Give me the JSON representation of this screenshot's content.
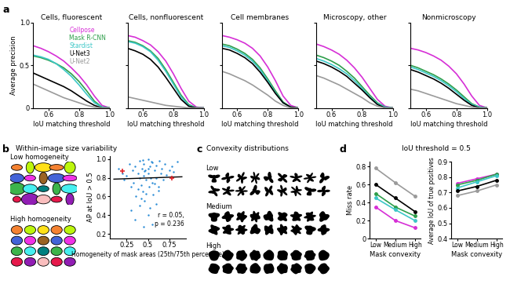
{
  "panel_labels": [
    "a",
    "b",
    "c",
    "d"
  ],
  "panel_b": {
    "title": "Within-image size variability",
    "image_labels": [
      "Low homogeneity",
      "High homogeneity"
    ]
  },
  "panel_c": {
    "title": "Convexity distributions",
    "row_labels": [
      "Low",
      "Medium",
      "High"
    ]
  },
  "panel_d_title": "IoU threshold = 0.5",
  "chart_data": [
    {
      "type": "line",
      "title": "Cells, fluorescent",
      "xlabel": "IoU matching threshold",
      "ylabel": "Average precision",
      "x": [
        0.5,
        0.55,
        0.6,
        0.65,
        0.7,
        0.75,
        0.8,
        0.85,
        0.9,
        0.95,
        1.0
      ],
      "xlim": [
        0.5,
        1.0
      ],
      "xticks": [
        0.6,
        0.8,
        1.0
      ],
      "ylim": [
        0,
        1.0
      ],
      "yticks": [
        0,
        0.5,
        1.0
      ],
      "legend": "upper right",
      "series": [
        {
          "name": "Cellpose",
          "color": "#d62fd6",
          "values": [
            0.73,
            0.7,
            0.66,
            0.61,
            0.55,
            0.47,
            0.38,
            0.27,
            0.14,
            0.03,
            0
          ]
        },
        {
          "name": "Mask R-CNN",
          "color": "#2e9e4a",
          "values": [
            0.61,
            0.59,
            0.56,
            0.52,
            0.47,
            0.4,
            0.31,
            0.2,
            0.08,
            0.01,
            0
          ]
        },
        {
          "name": "Stardist",
          "color": "#3cc7c7",
          "values": [
            0.62,
            0.6,
            0.57,
            0.52,
            0.45,
            0.37,
            0.27,
            0.16,
            0.06,
            0.01,
            0
          ]
        },
        {
          "name": "U-Net3",
          "color": "#000000",
          "values": [
            0.41,
            0.37,
            0.33,
            0.29,
            0.25,
            0.2,
            0.14,
            0.08,
            0.03,
            0,
            0
          ]
        },
        {
          "name": "U-Net2",
          "color": "#9a9a9a",
          "values": [
            0.28,
            0.24,
            0.2,
            0.16,
            0.12,
            0.09,
            0.06,
            0.03,
            0.01,
            0,
            0
          ]
        }
      ]
    },
    {
      "type": "line",
      "title": "Cells, nonfluorescent",
      "xlabel": "IoU matching threshold",
      "x": [
        0.5,
        0.55,
        0.6,
        0.65,
        0.7,
        0.75,
        0.8,
        0.85,
        0.9,
        0.95,
        1.0
      ],
      "xlim": [
        0.5,
        1.0
      ],
      "xticks": [
        0.6,
        0.8,
        1.0
      ],
      "ylim": [
        0,
        1.0
      ],
      "yticks": [
        0,
        0.5,
        1.0
      ],
      "tick_labels": "x",
      "series": [
        {
          "name": "Cellpose",
          "color": "#d62fd6",
          "values": [
            0.85,
            0.83,
            0.79,
            0.74,
            0.66,
            0.55,
            0.4,
            0.23,
            0.08,
            0.01,
            0
          ]
        },
        {
          "name": "Mask R-CNN",
          "color": "#2e9e4a",
          "values": [
            0.79,
            0.77,
            0.73,
            0.67,
            0.58,
            0.45,
            0.3,
            0.15,
            0.04,
            0,
            0
          ]
        },
        {
          "name": "Stardist",
          "color": "#3cc7c7",
          "values": [
            0.78,
            0.76,
            0.72,
            0.66,
            0.56,
            0.43,
            0.28,
            0.13,
            0.03,
            0,
            0
          ]
        },
        {
          "name": "U-Net3",
          "color": "#000000",
          "values": [
            0.7,
            0.67,
            0.63,
            0.57,
            0.48,
            0.36,
            0.23,
            0.1,
            0.02,
            0,
            0
          ]
        },
        {
          "name": "U-Net2",
          "color": "#9a9a9a",
          "values": [
            0.13,
            0.11,
            0.09,
            0.07,
            0.05,
            0.03,
            0.02,
            0.01,
            0,
            0,
            0
          ]
        }
      ]
    },
    {
      "type": "line",
      "title": "Cell membranes",
      "xlabel": "IoU matching threshold",
      "x": [
        0.5,
        0.55,
        0.6,
        0.65,
        0.7,
        0.75,
        0.8,
        0.85,
        0.9,
        0.95,
        1.0
      ],
      "xlim": [
        0.5,
        1.0
      ],
      "xticks": [
        0.6,
        0.8,
        1.0
      ],
      "ylim": [
        0,
        1.0
      ],
      "yticks": [
        0,
        0.5,
        1.0
      ],
      "tick_labels": "x",
      "series": [
        {
          "name": "Cellpose",
          "color": "#d62fd6",
          "values": [
            0.85,
            0.83,
            0.8,
            0.76,
            0.7,
            0.61,
            0.48,
            0.32,
            0.14,
            0.03,
            0
          ]
        },
        {
          "name": "Mask R-CNN",
          "color": "#2e9e4a",
          "values": [
            0.75,
            0.73,
            0.69,
            0.64,
            0.57,
            0.47,
            0.34,
            0.2,
            0.07,
            0.01,
            0
          ]
        },
        {
          "name": "Stardist",
          "color": "#3cc7c7",
          "values": [
            0.73,
            0.71,
            0.67,
            0.62,
            0.55,
            0.45,
            0.32,
            0.18,
            0.06,
            0.01,
            0
          ]
        },
        {
          "name": "U-Net3",
          "color": "#000000",
          "values": [
            0.7,
            0.68,
            0.64,
            0.59,
            0.52,
            0.42,
            0.3,
            0.17,
            0.06,
            0.01,
            0
          ]
        },
        {
          "name": "U-Net2",
          "color": "#9a9a9a",
          "values": [
            0.43,
            0.4,
            0.36,
            0.32,
            0.27,
            0.21,
            0.15,
            0.08,
            0.03,
            0,
            0
          ]
        }
      ]
    },
    {
      "type": "line",
      "title": "Microscopy, other",
      "xlabel": "IoU matching threshold",
      "x": [
        0.5,
        0.55,
        0.6,
        0.65,
        0.7,
        0.75,
        0.8,
        0.85,
        0.9,
        0.95,
        1.0
      ],
      "xlim": [
        0.5,
        1.0
      ],
      "xticks": [
        0.6,
        0.8,
        1.0
      ],
      "ylim": [
        0,
        1.0
      ],
      "yticks": [
        0,
        0.5,
        1.0
      ],
      "tick_labels": "x",
      "series": [
        {
          "name": "Cellpose",
          "color": "#d62fd6",
          "values": [
            0.75,
            0.72,
            0.68,
            0.63,
            0.56,
            0.47,
            0.36,
            0.23,
            0.1,
            0.02,
            0
          ]
        },
        {
          "name": "Mask R-CNN",
          "color": "#2e9e4a",
          "values": [
            0.62,
            0.59,
            0.55,
            0.5,
            0.43,
            0.35,
            0.25,
            0.15,
            0.06,
            0.01,
            0
          ]
        },
        {
          "name": "Stardist",
          "color": "#3cc7c7",
          "values": [
            0.58,
            0.55,
            0.51,
            0.46,
            0.4,
            0.32,
            0.23,
            0.13,
            0.05,
            0.01,
            0
          ]
        },
        {
          "name": "U-Net3",
          "color": "#000000",
          "values": [
            0.55,
            0.52,
            0.48,
            0.43,
            0.37,
            0.29,
            0.21,
            0.12,
            0.04,
            0,
            0
          ]
        },
        {
          "name": "U-Net2",
          "color": "#9a9a9a",
          "values": [
            0.38,
            0.35,
            0.31,
            0.27,
            0.22,
            0.17,
            0.12,
            0.06,
            0.02,
            0,
            0
          ]
        }
      ]
    },
    {
      "type": "line",
      "title": "Nonmicroscopy",
      "xlabel": "IoU matching threshold",
      "x": [
        0.5,
        0.55,
        0.6,
        0.65,
        0.7,
        0.75,
        0.8,
        0.85,
        0.9,
        0.95,
        1.0
      ],
      "xlim": [
        0.5,
        1.0
      ],
      "xticks": [
        0.6,
        0.8,
        1.0
      ],
      "ylim": [
        0,
        1.0
      ],
      "yticks": [
        0,
        0.5,
        1.0
      ],
      "tick_labels": "x",
      "series": [
        {
          "name": "Cellpose",
          "color": "#d62fd6",
          "values": [
            0.7,
            0.68,
            0.65,
            0.61,
            0.56,
            0.49,
            0.4,
            0.28,
            0.14,
            0.03,
            0
          ]
        },
        {
          "name": "Mask R-CNN",
          "color": "#2e9e4a",
          "values": [
            0.5,
            0.47,
            0.43,
            0.39,
            0.34,
            0.28,
            0.21,
            0.13,
            0.05,
            0.01,
            0
          ]
        },
        {
          "name": "Stardist",
          "color": "#3cc7c7",
          "values": [
            0.48,
            0.45,
            0.41,
            0.37,
            0.32,
            0.26,
            0.19,
            0.11,
            0.04,
            0.01,
            0
          ]
        },
        {
          "name": "U-Net3",
          "color": "#000000",
          "values": [
            0.45,
            0.42,
            0.38,
            0.34,
            0.29,
            0.23,
            0.16,
            0.09,
            0.03,
            0,
            0
          ]
        },
        {
          "name": "U-Net2",
          "color": "#9a9a9a",
          "values": [
            0.22,
            0.2,
            0.17,
            0.14,
            0.11,
            0.08,
            0.05,
            0.03,
            0.01,
            0,
            0
          ]
        }
      ]
    },
    {
      "type": "scatter",
      "xlabel": "Homogeneity of mask areas (25th/75th percentile)",
      "ylabel": "AP at IoU > 0.5",
      "xlim": [
        0.05,
        0.95
      ],
      "xticks": [
        0.25,
        0.5,
        0.75
      ],
      "ylim": [
        0.15,
        1.03
      ],
      "yticks": [
        0.2,
        0.4,
        0.6,
        0.8,
        1.0
      ],
      "annotations": [
        "r = 0.05,\np = 0.236"
      ],
      "series": [
        {
          "type": "scatter",
          "color": "#2b8cd6",
          "marker": "dot",
          "x": [
            0.15,
            0.2,
            0.22,
            0.25,
            0.28,
            0.3,
            0.32,
            0.33,
            0.35,
            0.36,
            0.38,
            0.4,
            0.4,
            0.42,
            0.43,
            0.44,
            0.45,
            0.45,
            0.46,
            0.47,
            0.48,
            0.5,
            0.5,
            0.51,
            0.52,
            0.53,
            0.55,
            0.55,
            0.56,
            0.58,
            0.6,
            0.6,
            0.62,
            0.63,
            0.65,
            0.66,
            0.68,
            0.7,
            0.72,
            0.75,
            0.78,
            0.8,
            0.85,
            0.3,
            0.35,
            0.4,
            0.45,
            0.5,
            0.55,
            0.6,
            0.42,
            0.48,
            0.52,
            0.38,
            0.62,
            0.58,
            0.44,
            0.5,
            0.46,
            0.54
          ],
          "values": [
            0.9,
            0.85,
            0.78,
            0.82,
            0.95,
            0.7,
            0.88,
            0.75,
            0.92,
            0.6,
            0.85,
            0.98,
            0.8,
            0.72,
            0.9,
            0.65,
            0.95,
            0.82,
            0.55,
            0.88,
            0.78,
            1.0,
            0.85,
            0.7,
            0.92,
            0.8,
            0.96,
            0.75,
            0.62,
            0.88,
            0.93,
            0.8,
            0.7,
            0.98,
            0.85,
            0.9,
            0.78,
            0.95,
            0.83,
            0.88,
            0.92,
            0.86,
            0.97,
            0.45,
            0.35,
            0.5,
            0.28,
            0.4,
            0.3,
            0.52,
            0.58,
            0.63,
            0.48,
            0.68,
            0.66,
            0.74,
            0.99,
            0.9,
            0.87,
            0.97
          ]
        },
        {
          "type": "line",
          "color": "#000000",
          "x": [
            0.1,
            0.9
          ],
          "values": [
            0.785,
            0.81
          ]
        },
        {
          "type": "scatter",
          "color": "#e0262b",
          "marker": "plus",
          "x": [
            0.2,
            0.78
          ],
          "values": [
            0.87,
            0.8
          ]
        }
      ]
    },
    {
      "type": "line",
      "ylabel": "Miss rate",
      "xlabel": "Mask convexity",
      "categories": [
        "Low",
        "Medium",
        "High"
      ],
      "ylim": [
        0,
        0.85
      ],
      "yticks": [
        0,
        0.2,
        0.4,
        0.6,
        0.8
      ],
      "series": [
        {
          "name": "U-Net2",
          "color": "#9a9a9a",
          "marker": "dot",
          "values": [
            0.78,
            0.62,
            0.47
          ]
        },
        {
          "name": "U-Net3",
          "color": "#000000",
          "marker": "dot",
          "values": [
            0.6,
            0.45,
            0.3
          ]
        },
        {
          "name": "Mask R-CNN",
          "color": "#2e9e4a",
          "marker": "dot",
          "values": [
            0.5,
            0.35,
            0.25
          ]
        },
        {
          "name": "Stardist",
          "color": "#3cc7c7",
          "marker": "dot",
          "values": [
            0.45,
            0.32,
            0.2
          ]
        },
        {
          "name": "Cellpose",
          "color": "#d62fd6",
          "marker": "dot",
          "values": [
            0.35,
            0.2,
            0.12
          ]
        }
      ]
    },
    {
      "type": "line",
      "ylabel": "Average IoU of true positives",
      "xlabel": "Mask convexity",
      "categories": [
        "Low",
        "Medium",
        "High"
      ],
      "ylim": [
        0.4,
        0.9
      ],
      "yticks": [
        0.4,
        0.5,
        0.6,
        0.7,
        0.8,
        0.9
      ],
      "series": [
        {
          "name": "Cellpose",
          "color": "#d62fd6",
          "marker": "dot",
          "values": [
            0.76,
            0.79,
            0.82
          ]
        },
        {
          "name": "Mask R-CNN",
          "color": "#2e9e4a",
          "marker": "dot",
          "values": [
            0.75,
            0.78,
            0.82
          ]
        },
        {
          "name": "Stardist",
          "color": "#3cc7c7",
          "marker": "dot",
          "values": [
            0.73,
            0.77,
            0.81
          ]
        },
        {
          "name": "U-Net3",
          "color": "#000000",
          "marker": "dot",
          "values": [
            0.71,
            0.74,
            0.78
          ]
        },
        {
          "name": "U-Net2",
          "color": "#9a9a9a",
          "marker": "dot",
          "values": [
            0.68,
            0.71,
            0.75
          ]
        }
      ]
    }
  ]
}
